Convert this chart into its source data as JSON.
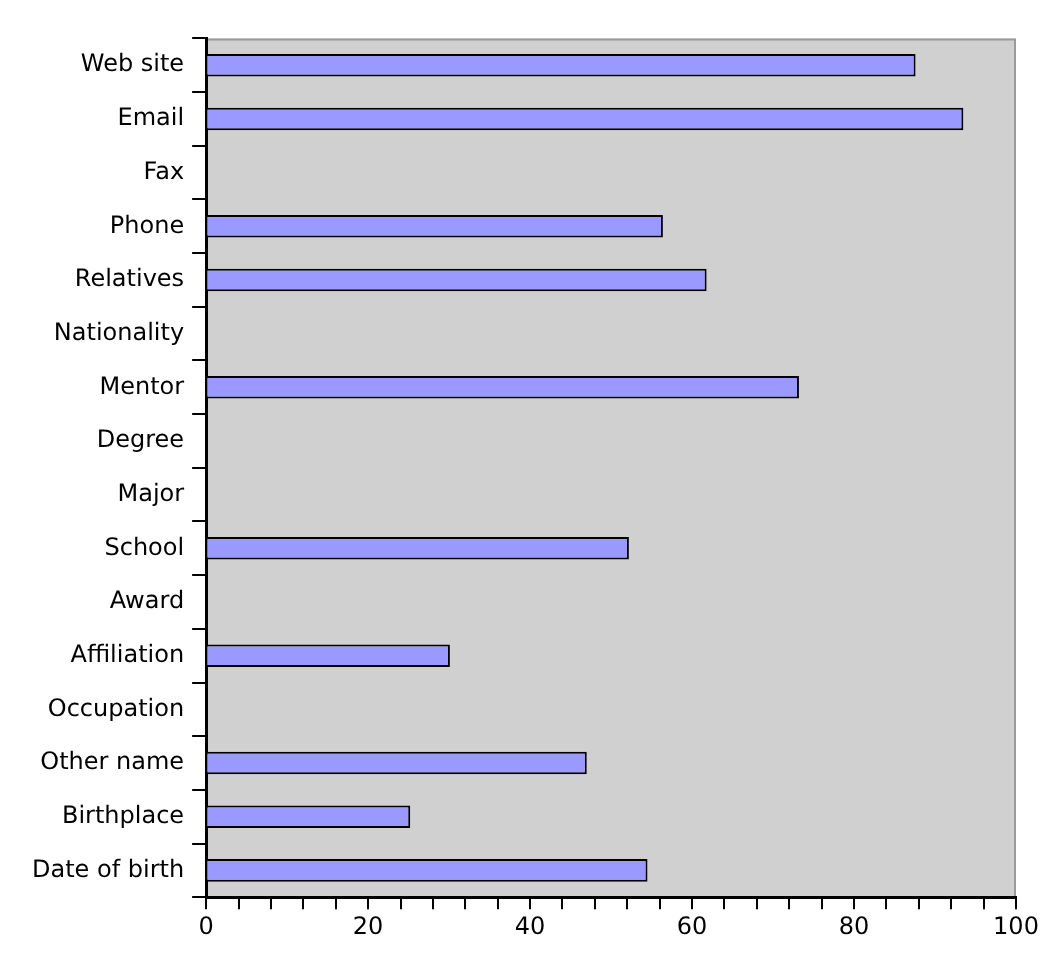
{
  "chart_data": {
    "type": "bar",
    "orientation": "horizontal",
    "categories": [
      "Web site",
      "Email",
      "Fax",
      "Phone",
      "Relatives",
      "Nationality",
      "Mentor",
      "Degree",
      "Major",
      "School",
      "Award",
      "Affiliation",
      "Occupation",
      "Other name",
      "Birthplace",
      "Date of birth"
    ],
    "values": [
      87.6,
      93.5,
      0,
      56.4,
      61.8,
      0,
      73.2,
      0,
      0,
      52.2,
      0,
      30.1,
      0,
      47.0,
      25.2,
      54.5
    ],
    "color": "#9999ff",
    "xlim": [
      0,
      100
    ],
    "xticks": [
      0,
      {
        "value": 4,
        "label": null
      },
      {
        "value": 8,
        "label": null
      },
      {
        "value": 12,
        "label": null
      },
      {
        "value": 16,
        "label": null
      },
      20,
      {
        "value": 24,
        "label": null
      },
      {
        "value": 28,
        "label": null
      },
      {
        "value": 32,
        "label": null
      },
      {
        "value": 36,
        "label": null
      },
      40,
      {
        "value": 44,
        "label": null
      },
      {
        "value": 48,
        "label": null
      },
      {
        "value": 52,
        "label": null
      },
      {
        "value": 56,
        "label": null
      },
      60,
      {
        "value": 64,
        "label": null
      },
      {
        "value": 68,
        "label": null
      },
      {
        "value": 72,
        "label": null
      },
      {
        "value": 76,
        "label": null
      },
      80,
      {
        "value": 84,
        "label": null
      },
      {
        "value": 88,
        "label": null
      },
      {
        "value": 92,
        "label": null
      },
      {
        "value": 96,
        "label": null
      },
      100
    ],
    "grid": false,
    "legend": false
  }
}
